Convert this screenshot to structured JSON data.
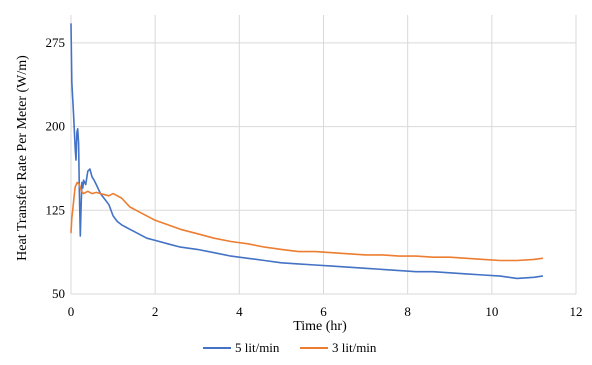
{
  "chart_data": {
    "type": "line",
    "title": "",
    "xlabel": "Time (hr)",
    "ylabel": "Heat Transfer Rate Per Meter (W/m)",
    "xlim": [
      0,
      12
    ],
    "ylim": [
      50,
      300
    ],
    "x_ticks": [
      0,
      2,
      4,
      6,
      8,
      10,
      12
    ],
    "y_ticks": [
      50,
      125,
      200,
      275
    ],
    "grid": "both",
    "legend_position": "bottom",
    "series": [
      {
        "name": "5 lit/min",
        "color": "#4472c4",
        "x": [
          0.0,
          0.02,
          0.04,
          0.06,
          0.08,
          0.1,
          0.12,
          0.14,
          0.16,
          0.18,
          0.2,
          0.22,
          0.24,
          0.26,
          0.28,
          0.3,
          0.35,
          0.4,
          0.45,
          0.5,
          0.55,
          0.6,
          0.7,
          0.8,
          0.9,
          1.0,
          1.1,
          1.2,
          1.4,
          1.6,
          1.8,
          2.0,
          2.3,
          2.6,
          3.0,
          3.4,
          3.8,
          4.2,
          4.6,
          5.0,
          5.4,
          5.8,
          6.2,
          6.6,
          7.0,
          7.4,
          7.8,
          8.2,
          8.6,
          9.0,
          9.4,
          9.8,
          10.2,
          10.6,
          11.0,
          11.2
        ],
        "y": [
          292,
          240,
          225,
          212,
          195,
          180,
          170,
          195,
          198,
          185,
          140,
          102,
          128,
          150,
          145,
          152,
          148,
          160,
          162,
          155,
          152,
          148,
          140,
          135,
          130,
          120,
          115,
          112,
          108,
          104,
          100,
          98,
          95,
          92,
          90,
          87,
          84,
          82,
          80,
          78,
          77,
          76,
          75,
          74,
          73,
          72,
          71,
          70,
          70,
          69,
          68,
          67,
          66,
          64,
          65,
          66
        ]
      },
      {
        "name": "3 lit/min",
        "color": "#ed7d31",
        "x": [
          0.0,
          0.02,
          0.04,
          0.06,
          0.08,
          0.1,
          0.15,
          0.2,
          0.25,
          0.3,
          0.4,
          0.5,
          0.6,
          0.7,
          0.8,
          0.9,
          1.0,
          1.1,
          1.2,
          1.3,
          1.4,
          1.6,
          1.8,
          2.0,
          2.3,
          2.6,
          3.0,
          3.4,
          3.8,
          4.2,
          4.6,
          5.0,
          5.4,
          5.8,
          6.2,
          6.6,
          7.0,
          7.4,
          7.8,
          8.2,
          8.6,
          9.0,
          9.4,
          9.8,
          10.2,
          10.6,
          11.0,
          11.2
        ],
        "y": [
          105,
          118,
          125,
          132,
          140,
          146,
          150,
          148,
          142,
          140,
          142,
          140,
          141,
          140,
          139,
          138,
          140,
          138,
          136,
          132,
          128,
          124,
          120,
          116,
          112,
          108,
          104,
          100,
          97,
          95,
          92,
          90,
          88,
          88,
          87,
          86,
          85,
          85,
          84,
          84,
          83,
          83,
          82,
          81,
          80,
          80,
          81,
          82
        ]
      }
    ]
  }
}
